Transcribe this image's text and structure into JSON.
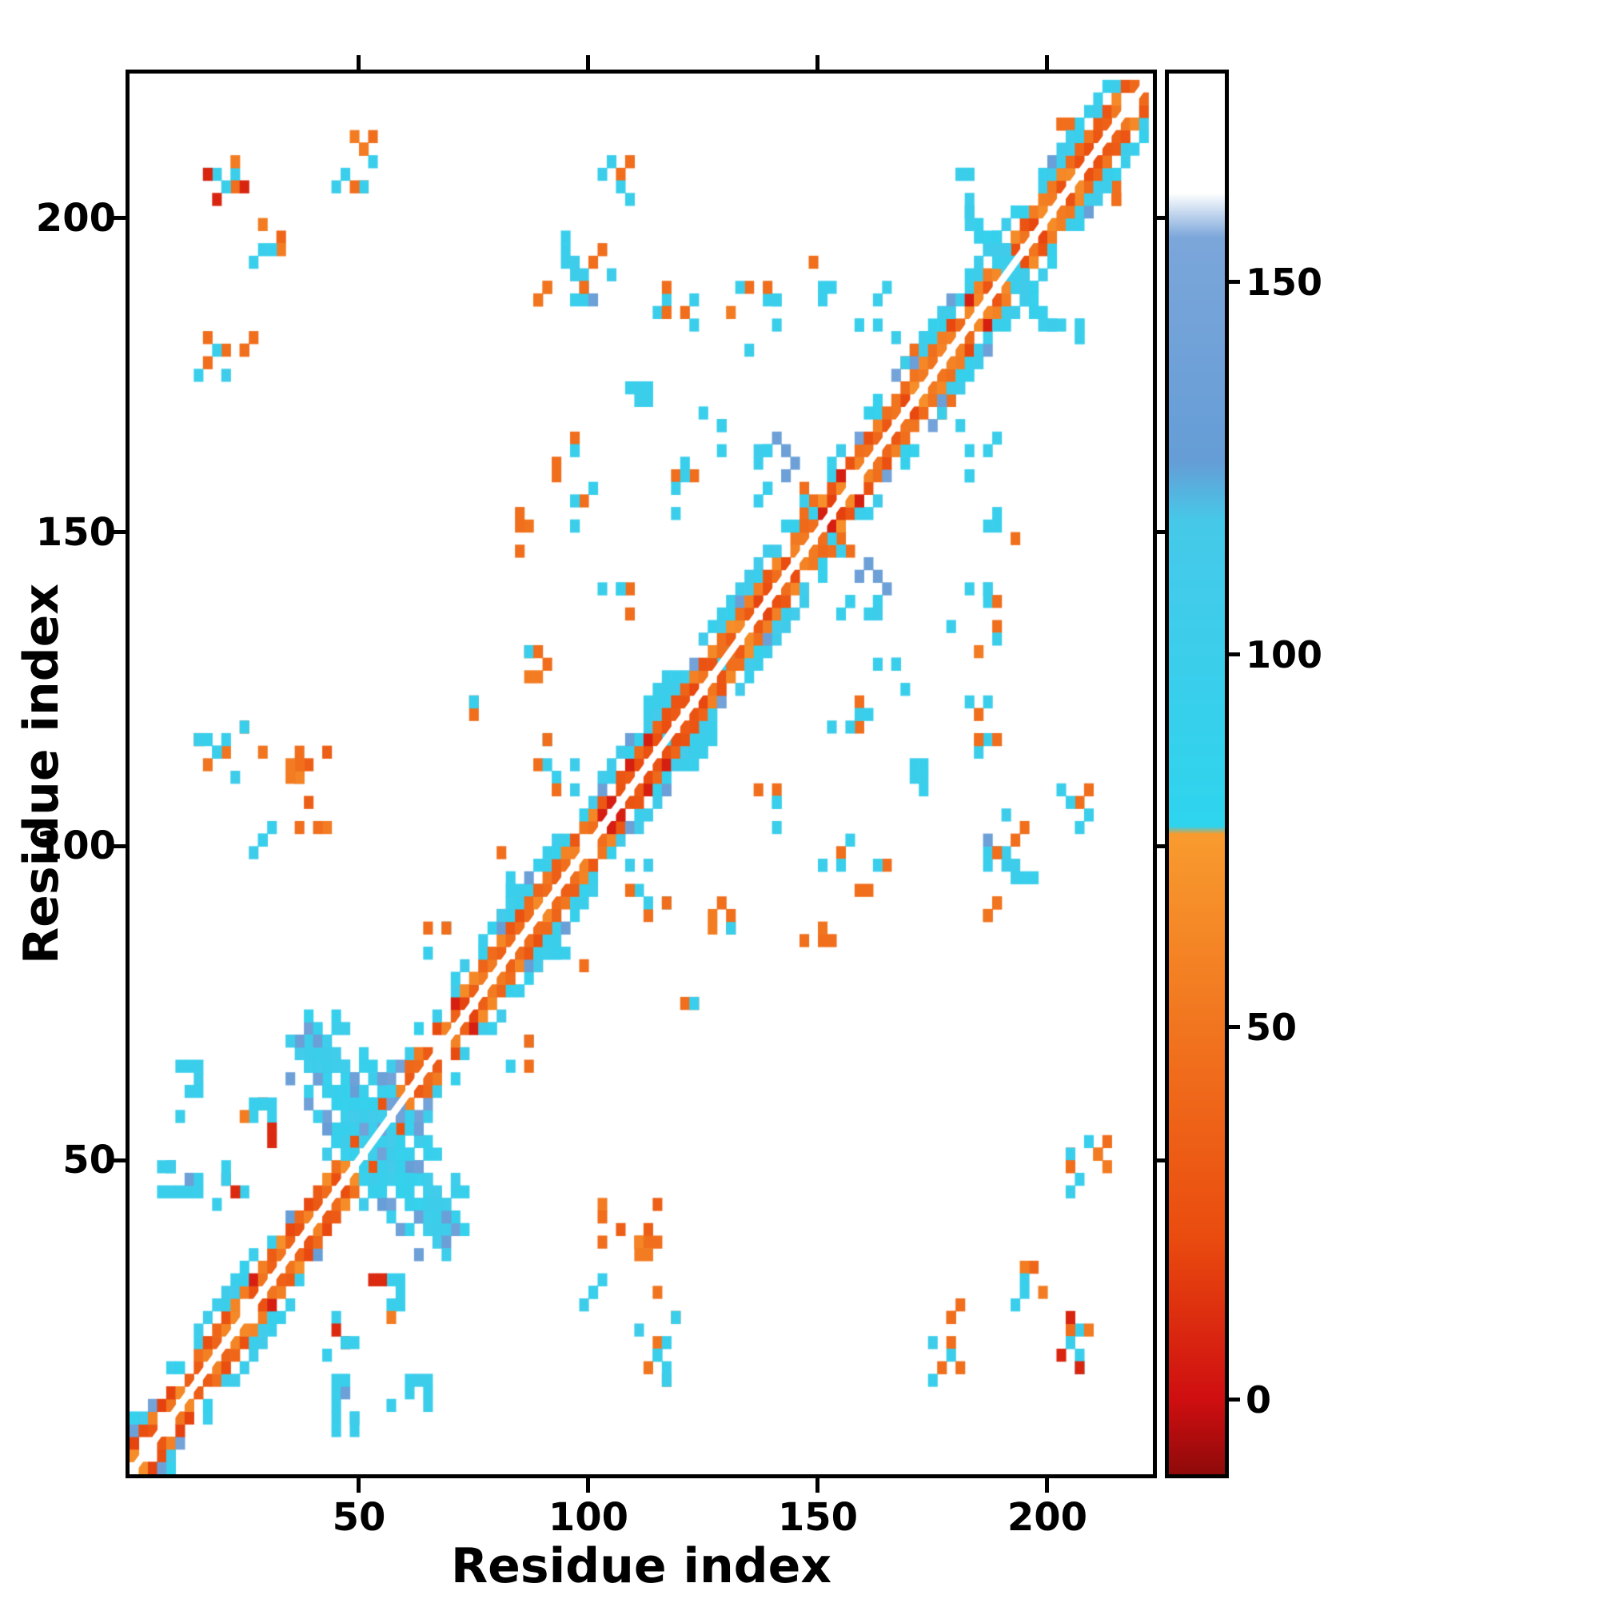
{
  "page": {
    "background": "#ffffff"
  },
  "chart_data": {
    "type": "heatmap",
    "title": "",
    "xlabel": "Residue index",
    "ylabel": "Residue index",
    "x_range": [
      0,
      223
    ],
    "y_range": [
      0,
      223
    ],
    "x_ticks": [
      50,
      100,
      150,
      200
    ],
    "y_ticks": [
      50,
      100,
      150,
      200
    ],
    "grid": false,
    "cell_residues": 2,
    "background": "#ffffff",
    "seed": 42,
    "colormap_stops": [
      {
        "v": -10,
        "color": "#8f0a0a"
      },
      {
        "v": 0,
        "color": "#cf0e10"
      },
      {
        "v": 22,
        "color": "#ea4c0f"
      },
      {
        "v": 76,
        "color": "#f89b2e"
      },
      {
        "v": 77,
        "color": "#2ed4ee"
      },
      {
        "v": 118,
        "color": "#46c9e9"
      },
      {
        "v": 126,
        "color": "#659dd6"
      },
      {
        "v": 156,
        "color": "#7ba6da"
      },
      {
        "v": 162,
        "color": "#ffffff"
      },
      {
        "v": 178,
        "color": "#ffffff"
      }
    ],
    "colorbar": {
      "range": [
        -10,
        178
      ],
      "ticks": [
        0,
        50,
        100,
        150
      ],
      "position": "right"
    },
    "diagonal": {
      "range": [
        0,
        222
      ],
      "inner_offsets": [
        2,
        4
      ],
      "inner_coverage": 0.93,
      "inner_values": [
        18,
        68
      ],
      "red_chance": 0.07,
      "red_value": 6,
      "flank_offsets": [
        6,
        8
      ],
      "flank_coverage": 0.62,
      "flank_values": [
        88,
        112
      ],
      "steel_chance": 0.1,
      "steel_values": [
        128,
        148
      ],
      "flank_segments": [
        [
          0,
          48
        ],
        [
          56,
          76
        ],
        [
          78,
          96
        ],
        [
          98,
          146
        ],
        [
          152,
          186
        ],
        [
          188,
          222
        ]
      ]
    },
    "crosses": [
      {
        "center": 53,
        "halflen": 15,
        "offsets": [
          0,
          2,
          4
        ],
        "coverage": 0.85,
        "values": [
          88,
          112
        ],
        "steel_chance": 0.3
      },
      {
        "center": 53,
        "halflen": 9,
        "offsets": [
          8,
          10
        ],
        "coverage": 0.5,
        "values": [
          88,
          112
        ],
        "steel_chance": 0.2
      },
      {
        "center": 192,
        "halflen": 9,
        "offsets": [
          0,
          2
        ],
        "coverage": 0.8,
        "values": [
          88,
          112
        ],
        "steel_chance": 0.15
      }
    ],
    "clusters": [
      {
        "cx": 22,
        "cy": 207,
        "rx": 5,
        "ry": 4,
        "n": 9,
        "palette": [
          8,
          35,
          45,
          55,
          100
        ]
      },
      {
        "cx": 31,
        "cy": 197,
        "rx": 4,
        "ry": 4,
        "n": 6,
        "palette": [
          40,
          55,
          95,
          100
        ]
      },
      {
        "cx": 18,
        "cy": 178,
        "rx": 4,
        "ry": 4,
        "n": 6,
        "palette": [
          45,
          95,
          100,
          105
        ]
      },
      {
        "cx": 21,
        "cy": 114,
        "rx": 8,
        "ry": 6,
        "n": 12,
        "palette": [
          95,
          100,
          105,
          50
        ]
      },
      {
        "cx": 39,
        "cy": 108,
        "rx": 4,
        "ry": 9,
        "n": 12,
        "palette": [
          35,
          45,
          55,
          60
        ]
      },
      {
        "cx": 30,
        "cy": 101,
        "rx": 3,
        "ry": 3,
        "n": 4,
        "palette": [
          95,
          105
        ]
      },
      {
        "cx": 11,
        "cy": 47,
        "rx": 5,
        "ry": 5,
        "n": 10,
        "palette": [
          95,
          100,
          135,
          105
        ]
      },
      {
        "cx": 28,
        "cy": 56,
        "rx": 5,
        "ry": 4,
        "n": 9,
        "palette": [
          10,
          35,
          45,
          55,
          95
        ]
      },
      {
        "cx": 61,
        "cy": 13,
        "rx": 5,
        "ry": 3,
        "n": 7,
        "palette": [
          95,
          100,
          105
        ]
      },
      {
        "cx": 100,
        "cy": 192,
        "rx": 6,
        "ry": 6,
        "n": 14,
        "palette": [
          95,
          100,
          105,
          45,
          135
        ]
      },
      {
        "cx": 90,
        "cy": 188,
        "rx": 2,
        "ry": 2,
        "n": 4,
        "palette": [
          45,
          50
        ]
      },
      {
        "cx": 119,
        "cy": 185,
        "rx": 5,
        "ry": 4,
        "n": 7,
        "palette": [
          95,
          100,
          45
        ]
      },
      {
        "cx": 110,
        "cy": 171,
        "rx": 4,
        "ry": 3,
        "n": 5,
        "palette": [
          95,
          45,
          100
        ]
      },
      {
        "cx": 135,
        "cy": 184,
        "rx": 7,
        "ry": 6,
        "n": 9,
        "palette": [
          95,
          100,
          45,
          55
        ]
      },
      {
        "cx": 163,
        "cy": 186,
        "rx": 4,
        "ry": 3,
        "n": 5,
        "palette": [
          95,
          100
        ]
      },
      {
        "cx": 140,
        "cy": 161,
        "rx": 5,
        "ry": 6,
        "n": 11,
        "palette": [
          95,
          100,
          105,
          135
        ]
      },
      {
        "cx": 122,
        "cy": 157,
        "rx": 4,
        "ry": 4,
        "n": 6,
        "palette": [
          95,
          45,
          100
        ]
      },
      {
        "cx": 89,
        "cy": 129,
        "rx": 3,
        "ry": 5,
        "n": 6,
        "palette": [
          45,
          95,
          55
        ]
      },
      {
        "cx": 85,
        "cy": 94,
        "rx": 5,
        "ry": 6,
        "n": 13,
        "palette": [
          95,
          100,
          105,
          45
        ]
      },
      {
        "cx": 107,
        "cy": 140,
        "rx": 4,
        "ry": 3,
        "n": 5,
        "palette": [
          95,
          100,
          45
        ]
      },
      {
        "cx": 48,
        "cy": 206,
        "rx": 4,
        "ry": 3,
        "n": 5,
        "palette": [
          95,
          45,
          100
        ]
      },
      {
        "cx": 104,
        "cy": 206,
        "rx": 5,
        "ry": 3,
        "n": 6,
        "palette": [
          95,
          100,
          45
        ]
      },
      {
        "cx": 96,
        "cy": 162,
        "rx": 3,
        "ry": 3,
        "n": 4,
        "palette": [
          95,
          45
        ]
      },
      {
        "cx": 22,
        "cy": 46,
        "rx": 4,
        "ry": 4,
        "n": 6,
        "palette": [
          10,
          45,
          95,
          100
        ]
      },
      {
        "cx": 52,
        "cy": 211,
        "rx": 4,
        "ry": 3,
        "n": 5,
        "palette": [
          45,
          95,
          55
        ]
      },
      {
        "cx": 150,
        "cy": 190,
        "rx": 3,
        "ry": 3,
        "n": 4,
        "palette": [
          45,
          95
        ]
      },
      {
        "cx": 128,
        "cy": 166,
        "rx": 3,
        "ry": 3,
        "n": 4,
        "palette": [
          95,
          100
        ]
      },
      {
        "cx": 155,
        "cy": 147,
        "rx": 3,
        "ry": 3,
        "n": 4,
        "palette": [
          45,
          95
        ]
      },
      {
        "cx": 170,
        "cy": 180,
        "rx": 3,
        "ry": 4,
        "n": 6,
        "palette": [
          95,
          100,
          45
        ]
      },
      {
        "cx": 66,
        "cy": 86,
        "rx": 3,
        "ry": 3,
        "n": 4,
        "palette": [
          95,
          45
        ]
      },
      {
        "cx": 93,
        "cy": 112,
        "rx": 4,
        "ry": 5,
        "n": 8,
        "palette": [
          95,
          100,
          45,
          105
        ]
      },
      {
        "cx": 181,
        "cy": 206,
        "rx": 3,
        "ry": 3,
        "n": 4,
        "palette": [
          95,
          100
        ]
      },
      {
        "cx": 118,
        "cy": 128,
        "rx": 3,
        "ry": 4,
        "n": 6,
        "palette": [
          95,
          100,
          105
        ]
      },
      {
        "cx": 99,
        "cy": 153,
        "rx": 4,
        "ry": 4,
        "n": 5,
        "palette": [
          45,
          95,
          100
        ]
      },
      {
        "cx": 25,
        "cy": 180,
        "rx": 2,
        "ry": 2,
        "n": 3,
        "palette": [
          45,
          40
        ]
      },
      {
        "cx": 115,
        "cy": 120,
        "rx": 3,
        "ry": 3,
        "n": 5,
        "palette": [
          95,
          100
        ]
      },
      {
        "cx": 75,
        "cy": 122,
        "rx": 2,
        "ry": 2,
        "n": 3,
        "palette": [
          45,
          95
        ]
      },
      {
        "cx": 86,
        "cy": 150,
        "rx": 2,
        "ry": 3,
        "n": 4,
        "palette": [
          45,
          50
        ]
      },
      {
        "cx": 131,
        "cy": 131,
        "rx": 3,
        "ry": 3,
        "n": 5,
        "palette": [
          95,
          100,
          45
        ]
      },
      {
        "cx": 205,
        "cy": 212,
        "rx": 3,
        "ry": 3,
        "n": 4,
        "palette": [
          45,
          95
        ]
      }
    ]
  }
}
